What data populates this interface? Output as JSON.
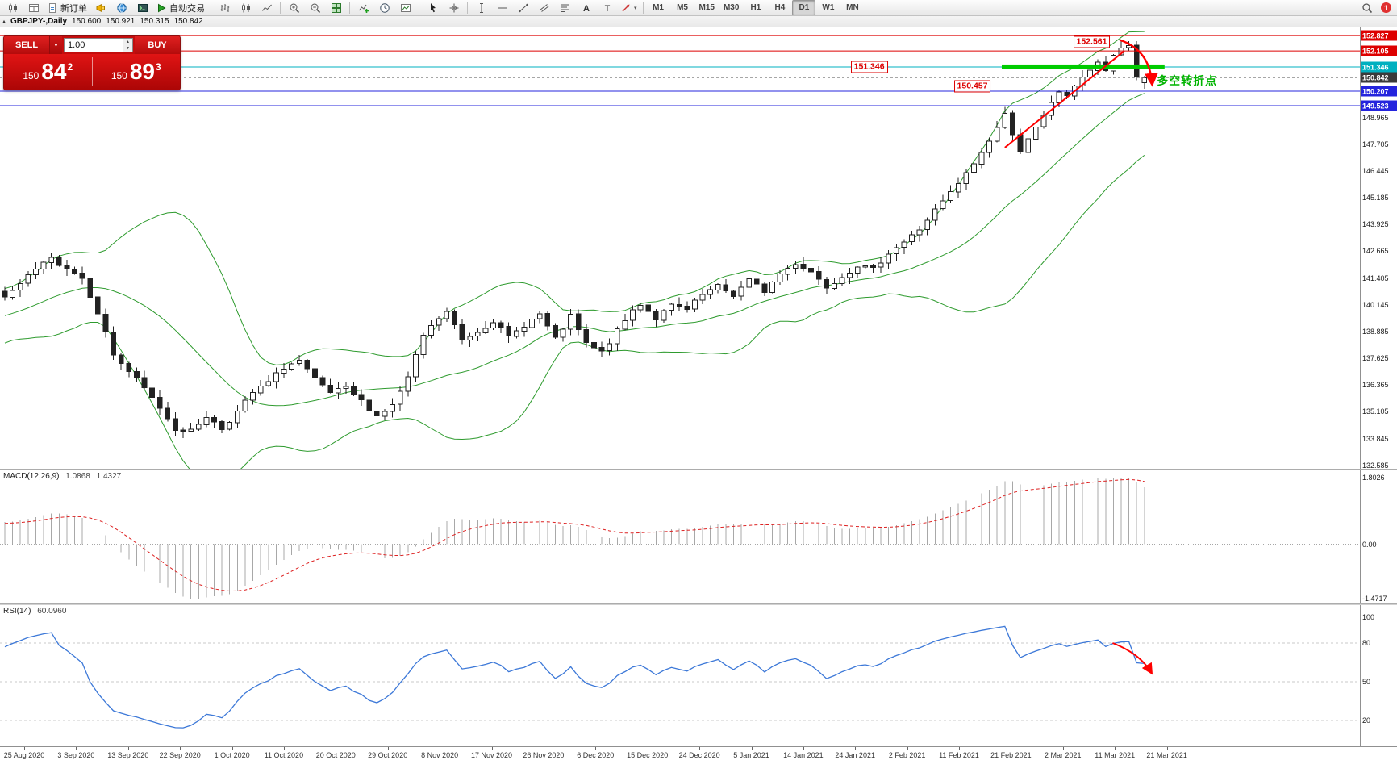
{
  "glyphs": {
    "collapse_marker": "▴",
    "caret_down": "▼",
    "spinner_up": "▲",
    "spinner_down": "▼",
    "tool_caret": "▾"
  },
  "toolbar": {
    "left_groups": [
      {
        "items": [
          {
            "name": "new-chart",
            "icon": "candlestick-chart"
          },
          {
            "name": "profiles",
            "icon": "layout-grid"
          },
          {
            "name": "new-order",
            "icon": "order-doc",
            "label": "新订单"
          },
          {
            "name": "market-watch",
            "icon": "megaphone"
          },
          {
            "name": "community",
            "icon": "globe"
          },
          {
            "name": "data-window",
            "icon": "terminal"
          },
          {
            "name": "auto-trading",
            "icon": "play",
            "label": "自动交易"
          }
        ]
      },
      {
        "items": [
          {
            "name": "bar-chart-mode",
            "icon": "chart-bars"
          },
          {
            "name": "candlestick-mode",
            "icon": "chart-candles"
          },
          {
            "name": "line-chart-mode",
            "icon": "chart-line"
          }
        ]
      },
      {
        "items": [
          {
            "name": "zoom-in",
            "icon": "zoom-in"
          },
          {
            "name": "zoom-out",
            "icon": "zoom-out"
          },
          {
            "name": "tile-windows",
            "icon": "tile-grid"
          }
        ]
      },
      {
        "items": [
          {
            "name": "indicators",
            "icon": "indicators-add"
          },
          {
            "name": "periods",
            "icon": "clock"
          },
          {
            "name": "templates",
            "icon": "template-chart"
          }
        ]
      },
      {
        "items": [
          {
            "name": "cursor",
            "icon": "cursor-arrow"
          },
          {
            "name": "crosshair",
            "icon": "crosshair"
          }
        ]
      },
      {
        "items": [
          {
            "name": "vertical-line-tool",
            "icon": "vline"
          },
          {
            "name": "horizontal-line-tool",
            "icon": "hline"
          },
          {
            "name": "trendline-tool",
            "icon": "trendline"
          },
          {
            "name": "channel-tool",
            "icon": "channel"
          },
          {
            "name": "fibonacci-tool",
            "icon": "fibonacci"
          },
          {
            "name": "text-tool",
            "icon": "text-a"
          },
          {
            "name": "label-tool",
            "icon": "label-t"
          },
          {
            "name": "arrows-tool",
            "icon": "arrow-tool",
            "caret": true
          }
        ]
      }
    ],
    "timeframes": [
      "M1",
      "M5",
      "M15",
      "M30",
      "H1",
      "H4",
      "D1",
      "W1",
      "MN"
    ],
    "active_timeframe": "D1",
    "right_items": [
      {
        "name": "search",
        "icon": "magnifier"
      },
      {
        "name": "notifications",
        "badge": "1"
      }
    ]
  },
  "chart_header": {
    "symbol_period": "GBPJPY-,Daily",
    "open": "150.600",
    "high": "150.921",
    "low": "150.315",
    "close": "150.842"
  },
  "trade_panel": {
    "sell_label": "SELL",
    "buy_label": "BUY",
    "volume": "1.00",
    "sell_price_small": "150",
    "sell_price_big": "84",
    "sell_price_sup": "2",
    "buy_price_small": "150",
    "buy_price_big": "89",
    "buy_price_sup": "3"
  },
  "price_scale": {
    "top_price": 148.965,
    "step": 1.26,
    "labels": [
      "148.965",
      "147.705",
      "146.445",
      "145.185",
      "143.925",
      "142.665",
      "141.405",
      "140.145",
      "138.885",
      "137.625",
      "136.365",
      "135.105",
      "133.845",
      "132.585"
    ],
    "tags": [
      {
        "text": "152.827",
        "price": 152.827,
        "bg": "#dd0000"
      },
      {
        "text": "152.105",
        "price": 152.105,
        "bg": "#dd0000"
      },
      {
        "text": "151.346",
        "price": 151.346,
        "bg": "#00b0c0"
      },
      {
        "text": "150.842",
        "price": 150.842,
        "bg": "#3a3a3a"
      },
      {
        "text": "150.207",
        "price": 150.207,
        "bg": "#2424dd"
      },
      {
        "text": "149.523",
        "price": 149.523,
        "bg": "#2424dd"
      }
    ]
  },
  "chart_data": {
    "type": "candlestick",
    "symbol": "GBPJPY-",
    "timeframe": "Daily",
    "bars": 148,
    "price_range_visible": [
      132.42,
      153.21
    ],
    "high_marker": 152.561,
    "last_ohlc": {
      "open": 150.6,
      "high": 150.921,
      "low": 150.315,
      "close": 150.842
    },
    "bollinger": {
      "period": 20,
      "deviation": 2
    },
    "close_anchors": [
      [
        0,
        140.5
      ],
      [
        2,
        141.1
      ],
      [
        4,
        141.8
      ],
      [
        6,
        142.3
      ],
      [
        8,
        141.9
      ],
      [
        10,
        141.4
      ],
      [
        12,
        139.8
      ],
      [
        14,
        137.8
      ],
      [
        16,
        137.0
      ],
      [
        18,
        136.2
      ],
      [
        20,
        135.3
      ],
      [
        22,
        134.3
      ],
      [
        24,
        134.2
      ],
      [
        26,
        134.9
      ],
      [
        28,
        134.3
      ],
      [
        30,
        135.1
      ],
      [
        32,
        136.0
      ],
      [
        34,
        136.5
      ],
      [
        36,
        137.2
      ],
      [
        38,
        137.5
      ],
      [
        40,
        136.6
      ],
      [
        42,
        136.0
      ],
      [
        44,
        136.2
      ],
      [
        46,
        135.6
      ],
      [
        48,
        134.9
      ],
      [
        50,
        135.4
      ],
      [
        52,
        136.7
      ],
      [
        54,
        138.7
      ],
      [
        56,
        139.5
      ],
      [
        57,
        139.8
      ],
      [
        59,
        138.5
      ],
      [
        61,
        138.9
      ],
      [
        63,
        139.4
      ],
      [
        65,
        138.6
      ],
      [
        67,
        139.2
      ],
      [
        69,
        139.7
      ],
      [
        71,
        138.5
      ],
      [
        73,
        139.6
      ],
      [
        75,
        138.3
      ],
      [
        77,
        137.9
      ],
      [
        79,
        138.9
      ],
      [
        81,
        139.9
      ],
      [
        82,
        140.2
      ],
      [
        84,
        139.5
      ],
      [
        86,
        140.1
      ],
      [
        88,
        139.9
      ],
      [
        90,
        140.6
      ],
      [
        92,
        141.0
      ],
      [
        94,
        140.6
      ],
      [
        96,
        141.3
      ],
      [
        98,
        140.8
      ],
      [
        100,
        141.6
      ],
      [
        102,
        142.1
      ],
      [
        104,
        141.7
      ],
      [
        106,
        141.0
      ],
      [
        108,
        141.5
      ],
      [
        110,
        142.0
      ],
      [
        112,
        141.8
      ],
      [
        114,
        142.6
      ],
      [
        116,
        143.1
      ],
      [
        118,
        143.7
      ],
      [
        120,
        144.6
      ],
      [
        122,
        145.4
      ],
      [
        124,
        146.3
      ],
      [
        126,
        147.3
      ],
      [
        128,
        148.5
      ],
      [
        129,
        149.1
      ],
      [
        131,
        147.4
      ],
      [
        132,
        147.9
      ],
      [
        134,
        149.0
      ],
      [
        135,
        149.7
      ],
      [
        136,
        150.2
      ],
      [
        137,
        149.9
      ],
      [
        138,
        150.5
      ],
      [
        139,
        150.9
      ],
      [
        140,
        151.2
      ],
      [
        141,
        151.5
      ],
      [
        142,
        151.2
      ],
      [
        143,
        151.9
      ],
      [
        144,
        152.25
      ],
      [
        145,
        152.35
      ],
      [
        146,
        150.9
      ],
      [
        147,
        150.842
      ]
    ]
  },
  "macd": {
    "label": "MACD(12,26,9)",
    "value_main": "1.0868",
    "value_signal": "1.4327",
    "axis_labels": [
      "1.8026",
      "0.00",
      "-1.4717"
    ],
    "axis_values": [
      1.8026,
      0,
      -1.4717
    ]
  },
  "rsi": {
    "label": "RSI(14)",
    "value": "60.0960",
    "axis_labels": [
      "100",
      "80",
      "50",
      "20"
    ],
    "axis_values": [
      100,
      80,
      50,
      20
    ],
    "levels": [
      80,
      50,
      20
    ]
  },
  "annotations": {
    "hlines": [
      {
        "price": 152.827,
        "color": "#dd0000"
      },
      {
        "price": 152.105,
        "color": "#dd0000"
      },
      {
        "price": 151.346,
        "color": "#00b0c0"
      },
      {
        "price": 150.207,
        "color": "#2424dd"
      },
      {
        "price": 149.523,
        "color": "#2424dd"
      }
    ],
    "bid_line": {
      "price": 150.842,
      "color": "#888888"
    },
    "green_segment": {
      "price": 151.35,
      "bar_from": 128.6,
      "bar_to": 149.6,
      "color": "#00cc00"
    },
    "trendline": {
      "bar_from": 129.0,
      "price_from": 147.55,
      "bar_to": 144.4,
      "price_to": 152.1,
      "color": "#ff0000"
    },
    "reversal_arrow": {
      "bar_from": 143.8,
      "price_from": 152.62,
      "bar_to": 148.0,
      "price_to": 150.55,
      "color": "#ff0000"
    },
    "price_labels": [
      {
        "text": "152.561",
        "bar": 140.2,
        "price": 152.53
      },
      {
        "text": "151.346",
        "bar": 111.5,
        "price": 151.34
      },
      {
        "text": "150.457",
        "bar": 124.8,
        "price": 150.42
      }
    ],
    "note": {
      "text": "多空转折点",
      "bar": 148.6,
      "price": 150.72,
      "color": "#00b400"
    },
    "rsi_arrow": {
      "bar_from": 142.9,
      "val_from": 80,
      "bar_to": 147.9,
      "val_to": 57,
      "color": "#ff0000"
    }
  },
  "theme": {
    "candle_stroke": "#222222",
    "bull_fill": "#ffffff",
    "bear_fill": "#222222",
    "band_green": "#2e9b2e",
    "macd_hist": "#a8a8a8",
    "macd_signal": "#dd2222",
    "rsi_blue": "#3c78d8"
  },
  "time_axis": {
    "labels": [
      "25 Aug 2020",
      "3 Sep 2020",
      "13 Sep 2020",
      "22 Sep 2020",
      "1 Oct 2020",
      "11 Oct 2020",
      "20 Oct 2020",
      "29 Oct 2020",
      "8 Nov 2020",
      "17 Nov 2020",
      "26 Nov 2020",
      "6 Dec 2020",
      "15 Dec 2020",
      "24 Dec 2020",
      "5 Jan 2021",
      "14 Jan 2021",
      "24 Jan 2021",
      "2 Feb 2021",
      "11 Feb 2021",
      "21 Feb 2021",
      "2 Mar 2021",
      "11 Mar 2021",
      "21 Mar 2021"
    ]
  }
}
